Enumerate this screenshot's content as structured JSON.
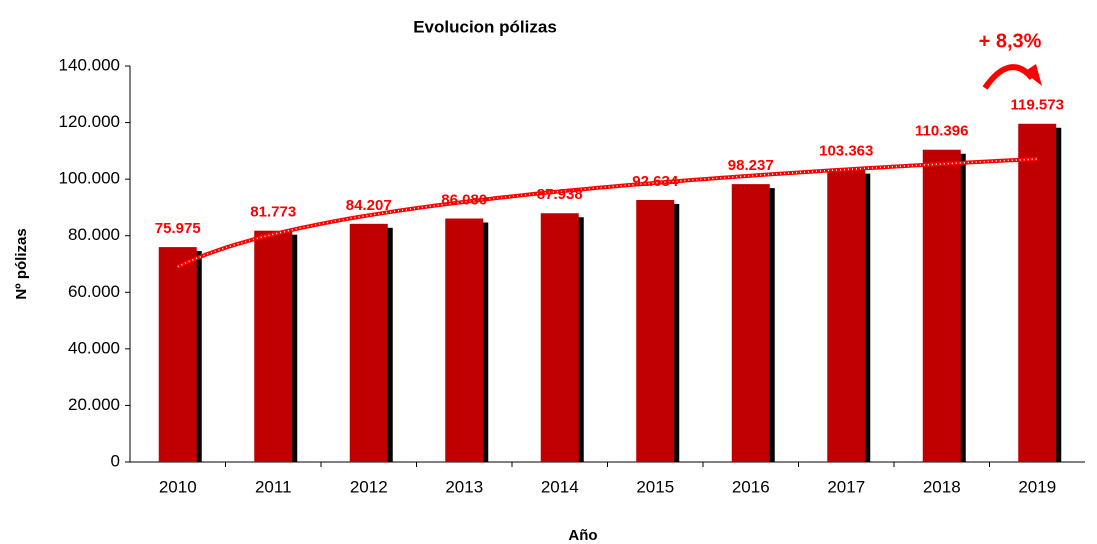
{
  "chart_data": {
    "type": "bar",
    "title": "Evolucion  pólizas",
    "xlabel": "Año",
    "ylabel": "Nº pólizas",
    "annotation": "+ 8,3%",
    "categories": [
      "2010",
      "2011",
      "2012",
      "2013",
      "2014",
      "2015",
      "2016",
      "2017",
      "2018",
      "2019"
    ],
    "values": [
      75975,
      81773,
      84207,
      86080,
      87938,
      92634,
      98237,
      103363,
      110396,
      119573
    ],
    "value_labels": [
      "75.975",
      "81.773",
      "84.207",
      "86.080",
      "87.938",
      "92.634",
      "98.237",
      "103.363",
      "110.396",
      "119.573"
    ],
    "color": "#c00000",
    "label_color": "#ff0000",
    "trendline": "logarithmic",
    "ylim": [
      0,
      140000
    ],
    "yticks": [
      0,
      {
        "value": 20000,
        "label": "20.000"
      },
      {
        "value": 40000,
        "label": "40.000"
      },
      {
        "value": 60000,
        "label": "60.000"
      },
      {
        "value": 80000,
        "label": "80.000"
      },
      {
        "value": 100000,
        "label": "100.000"
      },
      {
        "value": 120000,
        "label": "120.000"
      },
      {
        "value": 140000,
        "label": "140.000"
      }
    ]
  }
}
